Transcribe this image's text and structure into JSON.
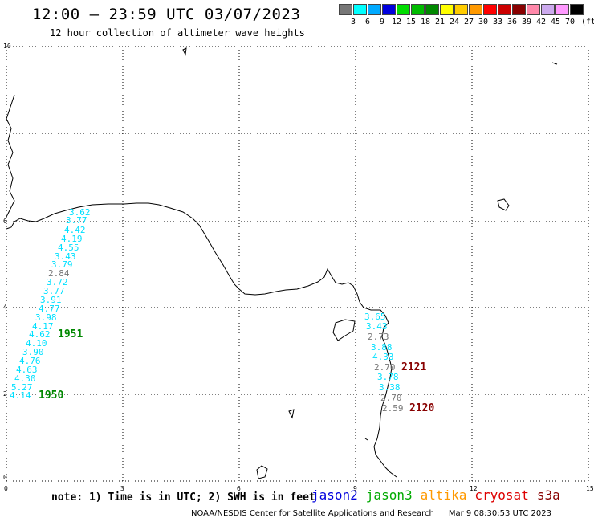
{
  "header": {
    "title": "12:00 – 23:59 UTC 03/07/2023",
    "subtitle": "12 hour collection of altimeter wave heights"
  },
  "color_scale": {
    "unit": "(ft)",
    "bins": [
      {
        "label": "3",
        "color": "#777777"
      },
      {
        "label": "6",
        "color": "#00ffff"
      },
      {
        "label": "9",
        "color": "#00aaff"
      },
      {
        "label": "12",
        "color": "#0000dd"
      },
      {
        "label": "15",
        "color": "#00dd00"
      },
      {
        "label": "18",
        "color": "#00bb00"
      },
      {
        "label": "21",
        "color": "#008800"
      },
      {
        "label": "24",
        "color": "#ffff00"
      },
      {
        "label": "27",
        "color": "#ffcc00"
      },
      {
        "label": "30",
        "color": "#ff9900"
      },
      {
        "label": "33",
        "color": "#ff0000"
      },
      {
        "label": "36",
        "color": "#cc0000"
      },
      {
        "label": "39",
        "color": "#880000"
      },
      {
        "label": "42",
        "color": "#ff88aa"
      },
      {
        "label": "45",
        "color": "#ccaaee"
      },
      {
        "label": "70",
        "color": "#ff99ff"
      },
      {
        "label": "",
        "color": "#000000"
      }
    ]
  },
  "axes": {
    "x_ticks": [
      "0",
      "3",
      "6",
      "9",
      "12",
      "15"
    ],
    "y_ticks": [
      "0",
      "2",
      "4",
      "6",
      "10"
    ]
  },
  "tracks": [
    {
      "name": "west",
      "labels": [
        {
          "value": "3.62",
          "color": "#00e0ff"
        },
        {
          "value": "3.77",
          "color": "#00e0ff"
        },
        {
          "value": "4.42",
          "color": "#00e0ff"
        },
        {
          "value": "4.19",
          "color": "#00e0ff"
        },
        {
          "value": "4.55",
          "color": "#00e0ff"
        },
        {
          "value": "3.43",
          "color": "#00e0ff"
        },
        {
          "value": "3.79",
          "color": "#00e0ff"
        },
        {
          "value": "2.84",
          "color": "#777777"
        },
        {
          "value": "3.72",
          "color": "#00e0ff"
        },
        {
          "value": "3.77",
          "color": "#00e0ff"
        },
        {
          "value": "3.91",
          "color": "#00e0ff"
        },
        {
          "value": "4.77",
          "color": "#00e0ff"
        },
        {
          "value": "3.98",
          "color": "#00e0ff"
        },
        {
          "value": "4.17",
          "color": "#00e0ff"
        },
        {
          "value": "4.62",
          "color": "#00e0ff"
        },
        {
          "value": "4.10",
          "color": "#00e0ff"
        },
        {
          "value": "3.90",
          "color": "#00e0ff"
        },
        {
          "value": "4.76",
          "color": "#00e0ff"
        },
        {
          "value": "4.63",
          "color": "#00e0ff"
        },
        {
          "value": "4.30",
          "color": "#00e0ff"
        },
        {
          "value": "5.27",
          "color": "#00e0ff"
        },
        {
          "value": "4.14",
          "color": "#00e0ff"
        }
      ],
      "times": [
        {
          "value": "1951",
          "color": "#008800"
        },
        {
          "value": "1950",
          "color": "#008800"
        }
      ]
    },
    {
      "name": "east",
      "labels": [
        {
          "value": "3.65",
          "color": "#00e0ff"
        },
        {
          "value": "3.43",
          "color": "#00e0ff"
        },
        {
          "value": "2.73",
          "color": "#777777"
        },
        {
          "value": "3.88",
          "color": "#00e0ff"
        },
        {
          "value": "4.33",
          "color": "#00e0ff"
        },
        {
          "value": "2.70",
          "color": "#777777"
        },
        {
          "value": "3.78",
          "color": "#00e0ff"
        },
        {
          "value": "3.38",
          "color": "#00e0ff"
        },
        {
          "value": "2.70",
          "color": "#777777"
        },
        {
          "value": "2.59",
          "color": "#777777"
        }
      ],
      "times": [
        {
          "value": "2121",
          "color": "#880000"
        },
        {
          "value": "2120",
          "color": "#880000"
        }
      ]
    }
  ],
  "footer": {
    "note": "note: 1) Time is in UTC; 2) SWH is in feet",
    "satellites": [
      {
        "name": "jason2",
        "color": "#0000dd"
      },
      {
        "name": "jason3",
        "color": "#00aa00"
      },
      {
        "name": "altika",
        "color": "#ff9900"
      },
      {
        "name": "cryosat",
        "color": "#dd0000"
      },
      {
        "name": "s3a",
        "color": "#880000"
      }
    ],
    "credit": "NOAA/NESDIS Center for Satellite Applications and Research",
    "timestamp": "Mar  9 08:30:53 UTC 2023"
  }
}
